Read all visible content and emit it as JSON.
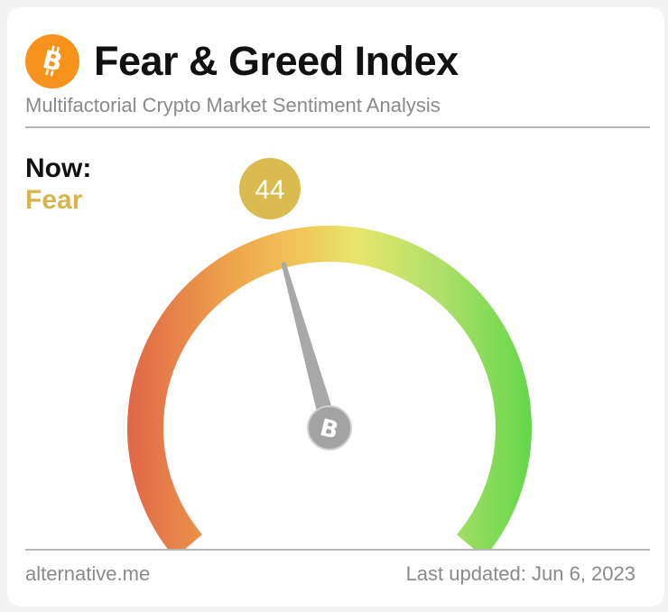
{
  "header": {
    "title": "Fear & Greed Index",
    "subtitle": "Multifactorial Crypto Market Sentiment Analysis",
    "logo_icon": "bitcoin-icon"
  },
  "now": {
    "label": "Now:",
    "classification": "Fear",
    "value": "44",
    "value_numeric": 44
  },
  "gauge": {
    "min": 0,
    "max": 100,
    "gradient_colors": [
      "#e06a48",
      "#efa64c",
      "#f0c85a",
      "#e6e66a",
      "#b0e06a",
      "#5ed648"
    ],
    "needle_color": "#a8a8a8",
    "hub_icon": "bitcoin-icon"
  },
  "footer": {
    "source": "alternative.me",
    "last_updated": "Last updated: Jun 6, 2023"
  },
  "colors": {
    "accent_fear": "#d6b64c",
    "bubble": "#d9bb4f",
    "bitcoin_orange": "#f7931a",
    "text_primary": "#111111",
    "text_secondary": "#8a8a8a"
  }
}
